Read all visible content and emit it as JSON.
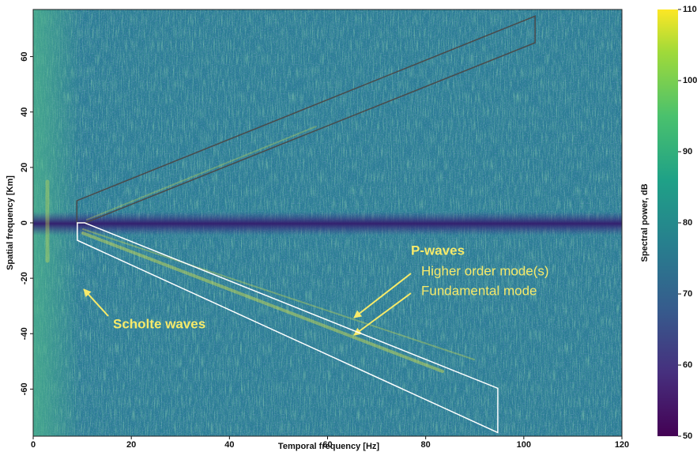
{
  "chart_data": {
    "type": "heatmap",
    "x_label": "Temporal frequency [Hz]",
    "y_label": "Spatial frequency [Km]",
    "xlim": [
      0,
      120
    ],
    "xticks": [
      0,
      20,
      40,
      60,
      80,
      100,
      120
    ],
    "ylim": [
      -77,
      77
    ],
    "yticks": [
      -60,
      -40,
      -20,
      0,
      20,
      40,
      60
    ],
    "colorbar": {
      "label": "Spectral power, dB",
      "lim": [
        50,
        110
      ],
      "ticks": [
        50,
        60,
        70,
        80,
        90,
        100,
        110
      ]
    },
    "regions": [
      {
        "color": "#4a4a4a",
        "x": [
          8.9,
          8.9,
          102.3,
          102.3,
          10.6
        ],
        "y": [
          0,
          8,
          74.6,
          65,
          0
        ]
      },
      {
        "color": "#ffffff",
        "x": [
          9,
          9,
          94.7,
          94.7,
          10.5
        ],
        "y": [
          0,
          -6.3,
          -75.7,
          -59.7,
          0
        ]
      }
    ],
    "annotations": [
      {
        "text": "P-waves",
        "color": "#f7ea6a"
      },
      {
        "text": "Higher order mode(s)",
        "color": "#f7ea6a"
      },
      {
        "text": "Fundamental mode",
        "color": "#f7ea6a"
      },
      {
        "text": "Scholte waves",
        "color": "#f7ea6a"
      }
    ]
  }
}
